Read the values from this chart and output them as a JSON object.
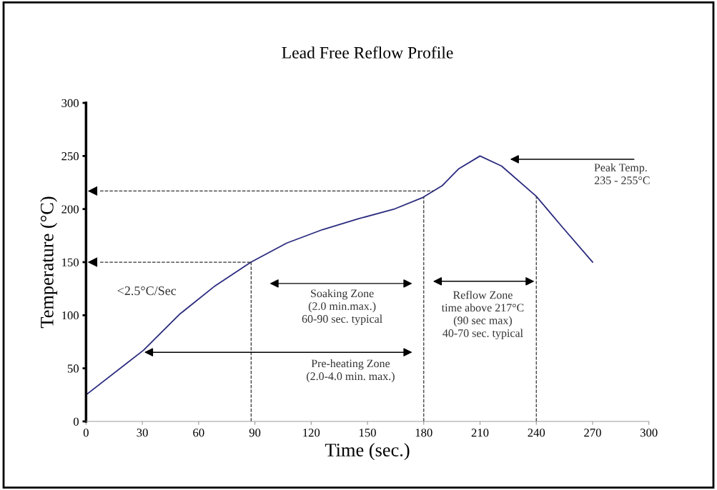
{
  "chart_data": {
    "type": "line",
    "title": "Lead Free Reflow Profile",
    "xlabel": "Time (sec.)",
    "ylabel": "Temperature (°C)",
    "x": [
      0,
      30.6,
      49.7,
      68.8,
      87.9,
      107,
      126,
      145,
      164,
      179.6,
      189.8,
      198.7,
      210,
      221.5,
      240,
      253.4,
      270
    ],
    "series": [
      {
        "color": "#2b2b7f",
        "values": [
          25,
          67,
          100.7,
          127.7,
          150,
          168,
          180.6,
          190.8,
          199.8,
          211,
          222,
          238,
          250,
          240.5,
          212,
          184,
          150
        ]
      }
    ],
    "xlim": [
      0,
      300
    ],
    "xticks": [
      0,
      30,
      60,
      90,
      120,
      150,
      180,
      210,
      240,
      270,
      300
    ],
    "ylim": [
      0,
      300
    ],
    "yticks": [
      0,
      50,
      100,
      150,
      200,
      250,
      300
    ],
    "grid": false,
    "marker": "none",
    "line_style": "solid",
    "ref_lines": [
      {
        "axis": "x",
        "value": 88,
        "color": "#333333",
        "line_style": "dashed"
      },
      {
        "axis": "x",
        "value": 180,
        "color": "#333333",
        "line_style": "dashed"
      },
      {
        "axis": "x",
        "value": 240,
        "color": "#333333",
        "line_style": "dashed"
      },
      {
        "axis": "y",
        "value": 150,
        "color": "#333333",
        "line_style": "dashed"
      },
      {
        "axis": "y",
        "value": 217,
        "color": "#333333",
        "line_style": "dashed"
      }
    ],
    "annotations": [
      "<2.5°C/Sec",
      "Soaking Zone\n(2.0 min.max.)\n60-90 sec. typical",
      "Reflow Zone\ntime above 217°C\n(90 sec max)\n40-70 sec. typical",
      "Pre-heating Zone\n(2.0-4.0 min. max.)",
      "Peak Temp.\n 235 - 255°C"
    ]
  }
}
